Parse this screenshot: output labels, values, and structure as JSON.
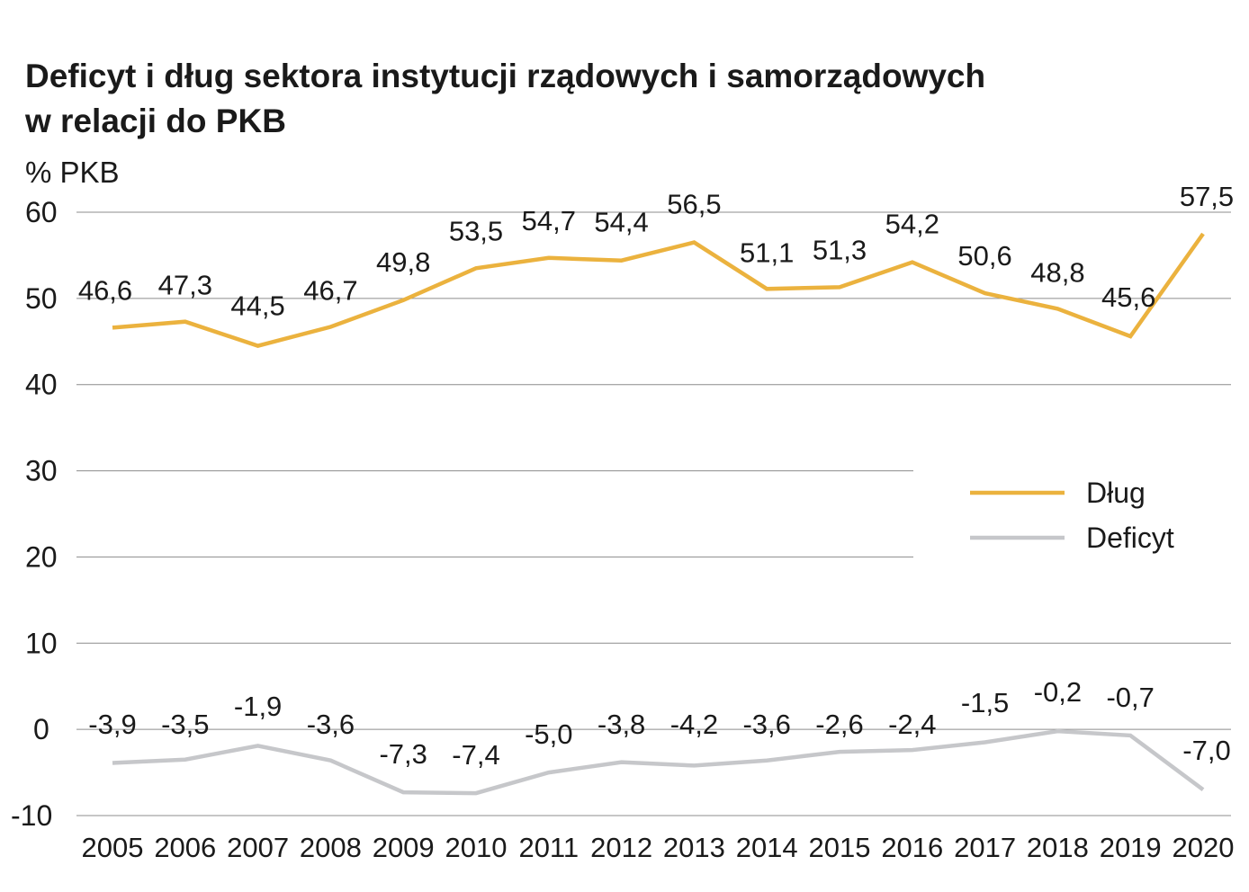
{
  "chart_data": {
    "type": "line",
    "title_lines": [
      "Deficyt i dług sektora instytucji rządowych i samorządowych",
      "w relacji do PKB"
    ],
    "ylabel": "% PKB",
    "xlabel": "",
    "categories": [
      "2005",
      "2006",
      "2007",
      "2008",
      "2009",
      "2010",
      "2011",
      "2012",
      "2013",
      "2014",
      "2015",
      "2016",
      "2017",
      "2018",
      "2019",
      "2020"
    ],
    "ylim": [
      -10,
      60
    ],
    "yticks": [
      60,
      50,
      40,
      30,
      20,
      10,
      0,
      -10
    ],
    "ytick_labels": [
      "60",
      "50",
      "40",
      "30",
      "20",
      "10",
      "0",
      "-10"
    ],
    "grid": "horizontal",
    "legend_position": "right",
    "series": [
      {
        "name": "Dług",
        "color": "#EBB23E",
        "values": [
          46.6,
          47.3,
          44.5,
          46.7,
          49.8,
          53.5,
          54.7,
          54.4,
          56.5,
          51.1,
          51.3,
          54.2,
          50.6,
          48.8,
          45.6,
          57.5
        ],
        "labels": [
          "46,6",
          "47,3",
          "44,5",
          "46,7",
          "49,8",
          "53,5",
          "54,7",
          "54,4",
          "56,5",
          "51,1",
          "51,3",
          "54,2",
          "50,6",
          "48,8",
          "45,6",
          "57,5"
        ]
      },
      {
        "name": "Deficyt",
        "color": "#C6C7CA",
        "values": [
          -3.9,
          -3.5,
          -1.9,
          -3.6,
          -7.3,
          -7.4,
          -5.0,
          -3.8,
          -4.2,
          -3.6,
          -2.6,
          -2.4,
          -1.5,
          -0.2,
          -0.7,
          -7.0
        ],
        "labels": [
          "-3,9",
          "-3,5",
          "-1,9",
          "-3,6",
          "-7,3",
          "-7,4",
          "-5,0",
          "-3,8",
          "-4,2",
          "-3,6",
          "-2,6",
          "-2,4",
          "-1,5",
          "-0,2",
          "-0,7",
          "-7,0"
        ]
      }
    ]
  }
}
